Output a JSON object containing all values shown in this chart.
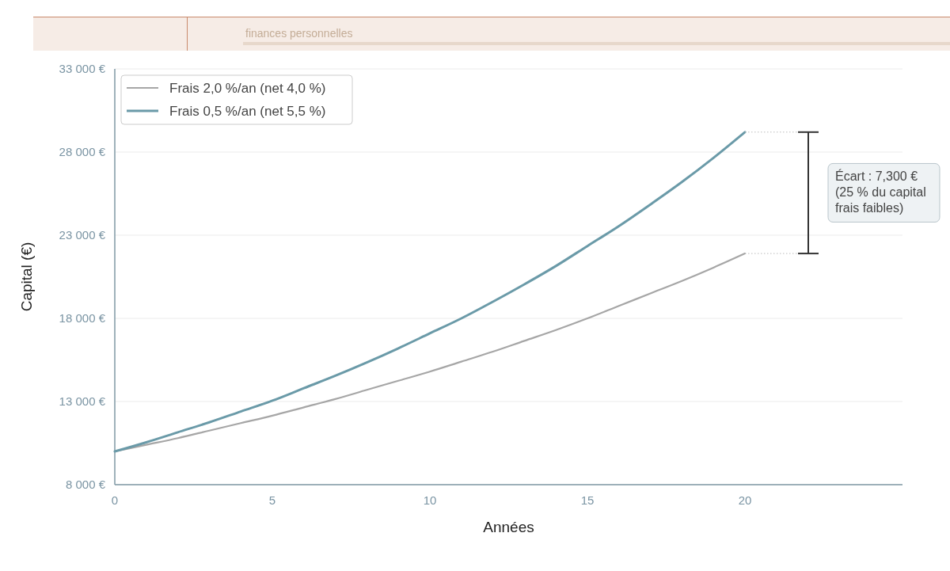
{
  "chart_data": {
    "type": "line",
    "subtitle": "finances personnelles",
    "xlabel": "Années",
    "ylabel": "Capital (€)",
    "x": [
      0,
      1,
      2,
      3,
      4,
      5,
      6,
      7,
      8,
      9,
      10,
      11,
      12,
      13,
      14,
      15,
      16,
      17,
      18,
      19,
      20
    ],
    "series": [
      {
        "name": "Frais 2,0 %/an (net 4,0 %)",
        "color": "#a6a6a6",
        "values": [
          10000,
          10400,
          10800,
          11250,
          11700,
          12150,
          12650,
          13150,
          13700,
          14250,
          14800,
          15400,
          16000,
          16650,
          17300,
          18000,
          18750,
          19500,
          20250,
          21050,
          21900
        ]
      },
      {
        "name": "Frais 0,5 %/an (net 5,5 %)",
        "color": "#6a9aa8",
        "values": [
          10000,
          10550,
          11150,
          11750,
          12400,
          13050,
          13800,
          14550,
          15350,
          16200,
          17100,
          18000,
          19000,
          20050,
          21150,
          22350,
          23550,
          24850,
          26200,
          27650,
          29200
        ]
      }
    ],
    "xlim": [
      0,
      25
    ],
    "xticks": [
      0,
      5,
      10,
      15,
      20
    ],
    "ylim": [
      8000,
      33000
    ],
    "yticks": [
      {
        "value": 8000,
        "label": "8 000 €"
      },
      {
        "value": 13000,
        "label": "13 000 €"
      },
      {
        "value": 18000,
        "label": "18 000 €"
      },
      {
        "value": 23000,
        "label": "23 000 €"
      },
      {
        "value": 28000,
        "label": "28 000 €"
      },
      {
        "value": 33000,
        "label": "33 000 €"
      }
    ],
    "grid": "y",
    "legend": "top left",
    "marker": "none",
    "line_style": "solid",
    "annotations": [
      "Écart : 7,300 €\n(25 % du capital\nfrais faibles)"
    ]
  }
}
